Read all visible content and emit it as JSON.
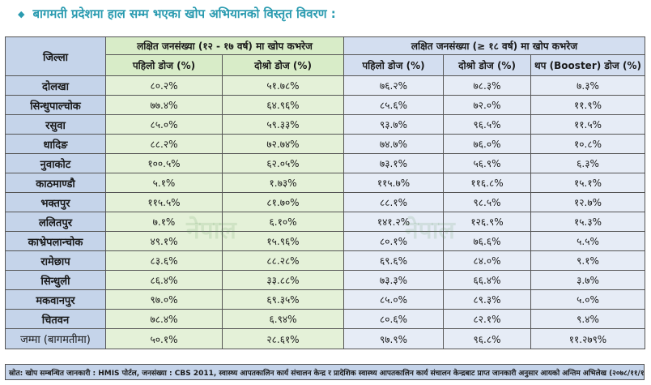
{
  "title": "बागमती प्रदेशमा हाल सम्म भएका खोप अभियानको विस्तृत विवरण :",
  "headers": {
    "district": "जिल्ला",
    "group_a": "लक्षित जनसंख्या (१२ - १७ वर्ष) मा खोप कभरेज",
    "group_b": "लक्षित जनसंख्या (≥ १८ वर्ष) मा खोप कभरेज",
    "a_first": "पहिलो डोज (%)",
    "a_second": "दोश्रो डोज (%)",
    "b_first": "पहिलो डोज (%)",
    "b_second": "दोश्रो डोज (%)",
    "b_booster": "थप (Booster) डोज (%)"
  },
  "rows": [
    {
      "district": "दोलखा",
      "a1": "८०.२%",
      "a2": "५१.७८%",
      "b1": "७६.२%",
      "b2": "७८.३%",
      "b3": "७.३%"
    },
    {
      "district": "सिन्धुपाल्चोक",
      "a1": "७७.४%",
      "a2": "६४.९६%",
      "b1": "८५.६%",
      "b2": "७२.०%",
      "b3": "११.९%"
    },
    {
      "district": "रसुवा",
      "a1": "८५.०%",
      "a2": "५९.३३%",
      "b1": "९३.७%",
      "b2": "९६.५%",
      "b3": "११.५%"
    },
    {
      "district": "धादिङ",
      "a1": "८८.२%",
      "a2": "७२.७४%",
      "b1": "७४.७%",
      "b2": "७६.०%",
      "b3": "१०.८%"
    },
    {
      "district": "नुवाकोट",
      "a1": "१००.५%",
      "a2": "६२.०५%",
      "b1": "७३.१%",
      "b2": "५६.९%",
      "b3": "६.३%"
    },
    {
      "district": "काठमाण्डौ",
      "a1": "५.१%",
      "a2": "१.७३%",
      "b1": "११५.७%",
      "b2": "११६.८%",
      "b3": "१५.१%"
    },
    {
      "district": "भक्तपुर",
      "a1": "११५.५%",
      "a2": "८१.७०%",
      "b1": "८८.१%",
      "b2": "९८.५%",
      "b3": "१२.७%"
    },
    {
      "district": "ललितपुर",
      "a1": "७.१%",
      "a2": "६.१०%",
      "b1": "१४१.२%",
      "b2": "१२६.९%",
      "b3": "१५.३%"
    },
    {
      "district": "काभ्रेपलान्चोक",
      "a1": "४९.१%",
      "a2": "१५.९६%",
      "b1": "८०.१%",
      "b2": "७६.६%",
      "b3": "५.५%"
    },
    {
      "district": "रामेछाप",
      "a1": "८३.६%",
      "a2": "८८.२८%",
      "b1": "६९.६%",
      "b2": "८४.०%",
      "b3": "९.१%"
    },
    {
      "district": "सिन्धुली",
      "a1": "८६.४%",
      "a2": "३३.८८%",
      "b1": "७३.३%",
      "b2": "६६.४%",
      "b3": "३.७%"
    },
    {
      "district": "मकवानपुर",
      "a1": "९७.०%",
      "a2": "६९.३५%",
      "b1": "८५.०%",
      "b2": "८९.३%",
      "b3": "५.०%"
    },
    {
      "district": "चितवन",
      "a1": "७८.४%",
      "a2": "६.९४%",
      "b1": "८०.६%",
      "b2": "८२.१%",
      "b3": "९.४%"
    }
  ],
  "total": {
    "district": "जम्मा (बागमतीमा)",
    "a1": "५०.१%",
    "a2": "२८.६१%",
    "b1": "९७.९%",
    "b2": "९६.८%",
    "b3": "११.२७९%"
  },
  "source": "स्रोत: खोप सम्बन्धित जानकारी : HMIS पोर्टल, जनसंख्या : CBS 2011, स्वास्थ्य आपतकालिन कार्य संचालन केन्द्र र प्रादेशिक स्वास्थ्य आपतकालिन कार्य संचालन केन्द्रबाट प्राप्त जानकारी अनुसार आयको अन्तिम अभिलेख (२०७८/११/१२)",
  "watermark": "नेपाल"
}
